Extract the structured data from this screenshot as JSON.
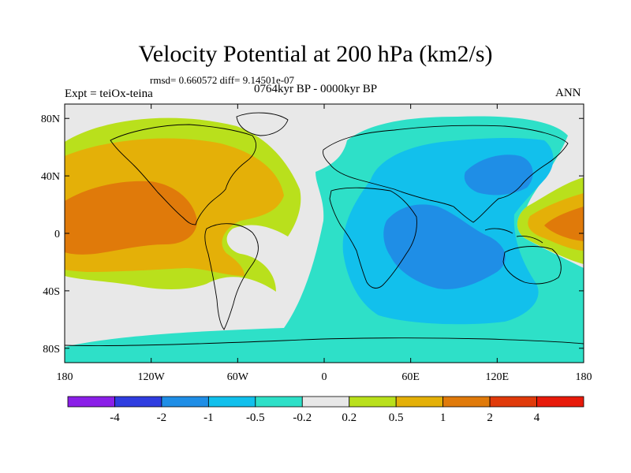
{
  "header": {
    "title": "Velocity Potential at 200 hPa (km2/s)",
    "stats": "rmsd= 0.660572 diff= 9.14501e-07",
    "left_label": "Expt = teiOx-teina",
    "center_label": "0764kyr BP - 0000kyr BP",
    "right_label": "ANN"
  },
  "map": {
    "lon_ticks": [
      "180",
      "120W",
      "60W",
      "0",
      "60E",
      "120E",
      "180"
    ],
    "lat_ticks": [
      "80N",
      "40N",
      "0",
      "40S",
      "80S"
    ]
  },
  "colorbar": {
    "labels": [
      "-4",
      "-2",
      "-1",
      "-0.5",
      "-0.2",
      "0.2",
      "0.5",
      "1",
      "2",
      "4"
    ],
    "colors": [
      "#8b1fe8",
      "#2f3de0",
      "#1f8ee6",
      "#12c0ec",
      "#2ee0c8",
      "#e8e8e8",
      "#b9e01c",
      "#e4b008",
      "#e07a0a",
      "#e03a0a",
      "#e81a0a"
    ]
  },
  "colors": {
    "ocean_zero": "#e8e8e8",
    "level_m2": "#1f8ee6",
    "level_m1": "#12c0ec",
    "level_m05": "#2ee0c8",
    "level_p02": "#b9e01c",
    "level_p05": "#e4b008",
    "level_p1": "#e07a0a"
  }
}
